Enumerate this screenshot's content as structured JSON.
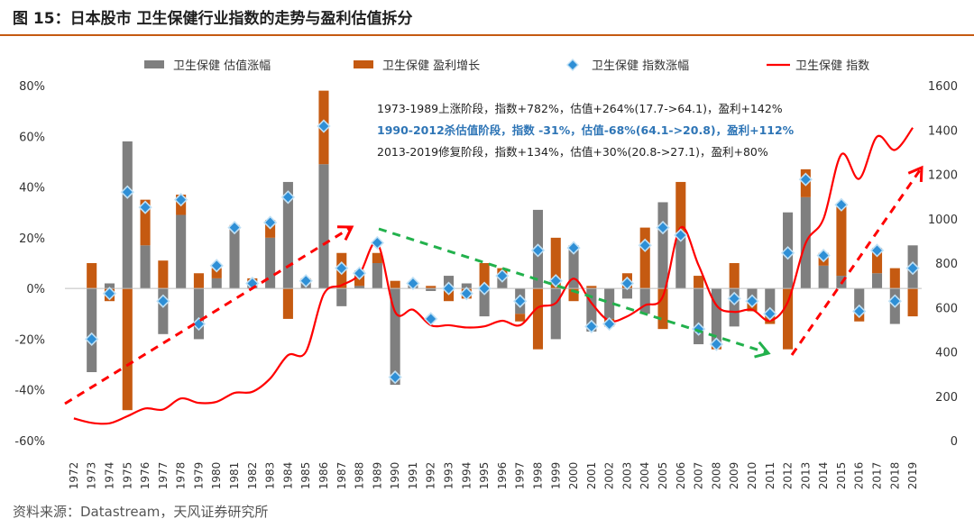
{
  "title": "图 15：日本股市  卫生保健行业指数的走势与盈利估值拆分",
  "source": "资料来源：Datastream，天风证券研究所",
  "colors": {
    "valuation": "#7f7f7f",
    "earnings": "#c55a11",
    "index_change_fill": "#2e8fd6",
    "index_change_stroke": "#bfe0f5",
    "index_line": "#ff0000",
    "arrow_red": "#ff0000",
    "arrow_green": "#22b14c",
    "highlight_text": "#2e75b6"
  },
  "annotations": [
    {
      "text": "1973-1989上涨阶段，指数+782%，估值+264%(17.7->64.1)，盈利+142%",
      "highlight": false
    },
    {
      "text": "1990-2012杀估值阶段，指数 -31%，估值-68%(64.1->20.8)，盈利+112%",
      "highlight": true
    },
    {
      "text": "2013-2019修复阶段，指数+134%，估值+30%(20.8->27.1)，盈利+80%",
      "highlight": false
    }
  ],
  "chart_data": {
    "type": "bar",
    "categories": [
      "1972",
      "1973",
      "1974",
      "1975",
      "1976",
      "1977",
      "1978",
      "1979",
      "1980",
      "1981",
      "1982",
      "1983",
      "1984",
      "1985",
      "1986",
      "1987",
      "1988",
      "1989",
      "1990",
      "1991",
      "1992",
      "1993",
      "1994",
      "1995",
      "1996",
      "1997",
      "1998",
      "1999",
      "2000",
      "2001",
      "2002",
      "2003",
      "2004",
      "2005",
      "2006",
      "2007",
      "2008",
      "2009",
      "2010",
      "2011",
      "2012",
      "2013",
      "2014",
      "2015",
      "2016",
      "2017",
      "2018",
      "2019"
    ],
    "y_left": {
      "ticks": [
        "80%",
        "60%",
        "40%",
        "20%",
        "0%",
        "-20%",
        "-40%",
        "-60%"
      ],
      "range": [
        -60,
        80
      ]
    },
    "y_right": {
      "ticks": [
        "1600",
        "1400",
        "1200",
        "1000",
        "800",
        "600",
        "400",
        "200",
        "0"
      ],
      "range": [
        0,
        1600
      ]
    },
    "legend_position": "top",
    "series": [
      {
        "name": "卫生保健 估值涨幅",
        "kind": "bar",
        "axis": "left",
        "values": [
          null,
          -33,
          2,
          58,
          17,
          -18,
          29,
          -20,
          4,
          23,
          2,
          20,
          42,
          2,
          49,
          -7,
          1,
          10,
          -38,
          1,
          -1,
          5,
          2,
          -11,
          4,
          -10,
          31,
          -20,
          17,
          -17,
          -12,
          -4,
          -10,
          34,
          22,
          -22,
          -22,
          -15,
          -5,
          -9,
          30,
          36,
          9,
          5,
          -10,
          6,
          -14,
          17
        ]
      },
      {
        "name": "卫生保健 盈利增长",
        "kind": "bar",
        "axis": "left",
        "values": [
          null,
          10,
          -5,
          -48,
          18,
          11,
          8,
          6,
          4,
          2,
          2,
          7,
          -12,
          2,
          29,
          14,
          6,
          4,
          3,
          1,
          1,
          -5,
          -4,
          10,
          4,
          -3,
          -24,
          20,
          -5,
          1,
          -3,
          6,
          24,
          -16,
          20,
          5,
          -2,
          10,
          -4,
          -5,
          -24,
          11,
          5,
          28,
          -3,
          10,
          8,
          -11
        ]
      },
      {
        "name": "卫生保健 指数涨幅",
        "kind": "marker",
        "axis": "left",
        "values": [
          null,
          -20,
          -2,
          38,
          32,
          -5,
          35,
          -14,
          9,
          24,
          2,
          26,
          36,
          3,
          64,
          8,
          6,
          18,
          -35,
          2,
          -12,
          0,
          -2,
          0,
          5,
          -5,
          15,
          3,
          16,
          -15,
          -14,
          2,
          17,
          24,
          21,
          -16,
          -22,
          -4,
          -5,
          -10,
          14,
          43,
          13,
          33,
          -9,
          15,
          -5,
          8
        ]
      },
      {
        "name": "卫生保健 指数",
        "kind": "line",
        "axis": "right",
        "values": [
          100,
          80,
          78,
          110,
          145,
          140,
          190,
          170,
          175,
          215,
          220,
          280,
          385,
          400,
          660,
          700,
          750,
          890,
          580,
          590,
          520,
          520,
          510,
          515,
          540,
          520,
          600,
          620,
          730,
          620,
          540,
          560,
          610,
          650,
          960,
          790,
          610,
          580,
          590,
          540,
          625,
          890,
          1000,
          1290,
          1180,
          1370,
          1310,
          1410
        ]
      }
    ]
  }
}
